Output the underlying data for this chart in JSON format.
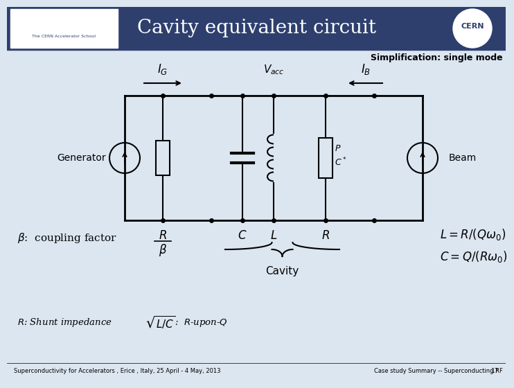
{
  "title": "Cavity equivalent circuit",
  "bg_header_color": "#2e3f6e",
  "title_color": "#ffffff",
  "body_bg_color": "#dce6f0",
  "simplification_text": "Simplification: single mode",
  "ig_label": "$I_G$",
  "vacc_label": "$V_{acc}$",
  "ib_label": "$I_B$",
  "generator_label": "Generator",
  "beam_label": "Beam",
  "c_label": "$C$",
  "l_label": "$L$",
  "r_label": "$R$",
  "coupling_text": ":  coupling factor",
  "cavity_label": "Cavity",
  "formula1": "$L=R/(Q\\omega_0)$",
  "formula2": "$C=Q/(R\\omega_0)$",
  "footer_left": "Superconductivity for Accelerators , Erice , Italy, 25 April - 4 May, 2013",
  "footer_right": "Case study Summary -- Superconducting RF",
  "page_number": "17"
}
